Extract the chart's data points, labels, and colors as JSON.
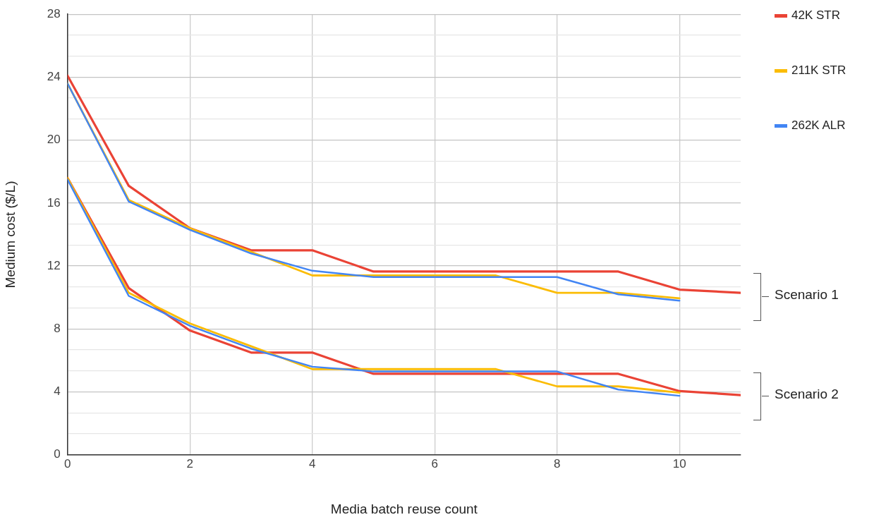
{
  "chart_data": {
    "type": "line",
    "xlabel": "Media batch reuse count",
    "ylabel": "Medium cost ($/L)",
    "x": [
      0,
      1,
      2,
      3,
      4,
      5,
      6,
      7,
      8,
      9,
      10,
      11
    ],
    "xlim": [
      0,
      11
    ],
    "xticks": [
      0,
      2,
      4,
      6,
      8,
      10
    ],
    "ylim": [
      0,
      28
    ],
    "yticks": [
      0,
      {
        "value": 1.33,
        "label": null
      },
      {
        "value": 2.67,
        "label": null
      },
      4,
      {
        "value": 5.33,
        "label": null
      },
      {
        "value": 6.67,
        "label": null
      },
      8,
      {
        "value": 9.33,
        "label": null
      },
      {
        "value": 10.67,
        "label": null
      },
      12,
      {
        "value": 13.33,
        "label": null
      },
      {
        "value": 14.67,
        "label": null
      },
      16,
      {
        "value": 17.33,
        "label": null
      },
      {
        "value": 18.67,
        "label": null
      },
      20,
      {
        "value": 21.33,
        "label": null
      },
      {
        "value": 22.67,
        "label": null
      },
      24,
      {
        "value": 25.33,
        "label": null
      },
      {
        "value": 26.67,
        "label": null
      },
      28
    ],
    "grid": true,
    "legend": "right",
    "marker": "none",
    "line_style": "solid",
    "series": [
      {
        "name": "42K STR",
        "color": "#ea4335",
        "values": [
          24.1,
          17.1,
          14.4,
          13.0,
          13.0,
          11.65,
          11.65,
          11.65,
          11.65,
          11.65,
          10.5,
          10.3
        ]
      },
      {
        "name": "211K STR",
        "color": "#fbbc04",
        "values": [
          23.6,
          16.2,
          14.4,
          12.9,
          11.4,
          11.4,
          11.4,
          11.4,
          10.3,
          10.3,
          9.95,
          null
        ]
      },
      {
        "name": "262K ALR",
        "color": "#4285f4",
        "values": [
          23.6,
          16.1,
          14.3,
          12.8,
          11.7,
          11.3,
          11.3,
          11.3,
          11.3,
          10.2,
          9.8,
          null
        ]
      },
      {
        "color": "#ea4335",
        "values": [
          17.6,
          10.6,
          7.9,
          6.5,
          6.5,
          5.15,
          5.15,
          5.15,
          5.15,
          5.15,
          4.05,
          3.8
        ]
      },
      {
        "color": "#fbbc04",
        "values": [
          17.6,
          10.3,
          8.35,
          6.9,
          5.45,
          5.45,
          5.45,
          5.45,
          4.35,
          4.35,
          3.95,
          null
        ]
      },
      {
        "color": "#4285f4",
        "values": [
          17.5,
          10.1,
          8.2,
          6.75,
          5.6,
          5.3,
          5.3,
          5.3,
          5.3,
          4.15,
          3.75,
          null
        ]
      }
    ],
    "annotations": [
      "Scenario 1",
      "Scenario 2"
    ]
  }
}
